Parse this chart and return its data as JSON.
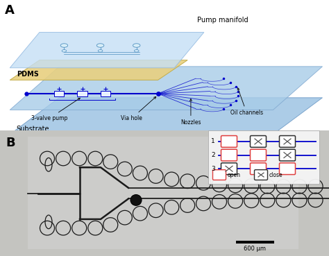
{
  "fig_width": 4.74,
  "fig_height": 3.69,
  "dpi": 100,
  "bg_color": "#ffffff",
  "panel_A": {
    "label": "A",
    "pump_manifold_label": "Pump manifold",
    "pdms_label": "PDMS",
    "substrate_label": "Substrate",
    "three_valve_label": "3-valve pump",
    "via_hole_label": "Via hole",
    "nozzles_label": "Nozzles",
    "oil_channels_label": "Oil channels",
    "glass_top_color": "#c5dff5",
    "glass_top_edge": "#90b8e0",
    "pdms_color": "#e8d080",
    "pdms_edge": "#c0a840",
    "glass_bot_color": "#a8cce8",
    "glass_bot_edge": "#80a8d0",
    "substrate_color": "#90bce0",
    "substrate_edge": "#6090c0",
    "channel_color": "#0000cc",
    "arrow_color": "#000000"
  },
  "panel_B": {
    "label": "B",
    "scale_bar_label": "600 μm",
    "bg_color": "#c0c0bc",
    "circle_color": "#1a1a1a",
    "open_color": "#e04040",
    "close_color": "#303030",
    "line_color": "#0000cc"
  }
}
